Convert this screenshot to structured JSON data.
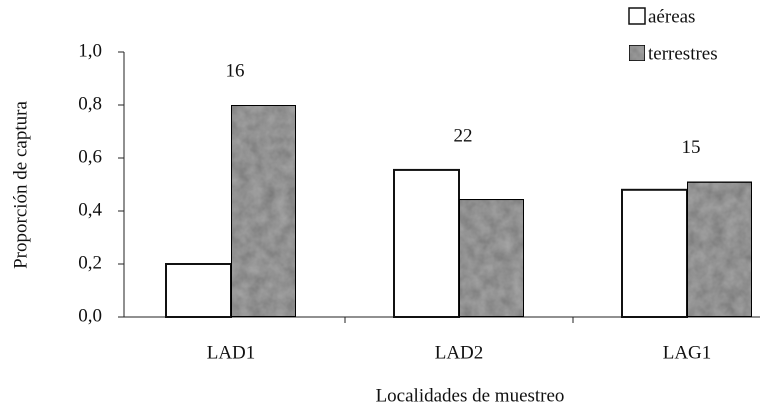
{
  "chart_data": {
    "type": "bar",
    "y_label": "Proporción de captura",
    "x_label": "Localidades de muestreo",
    "categories": [
      "LAD1",
      "LAD2",
      "LAG1"
    ],
    "series": [
      {
        "name": "aéreas",
        "color": "#ffffff",
        "values": [
          0.2,
          0.555,
          0.48
        ]
      },
      {
        "name": "terrestres",
        "color": "#a8a8a8",
        "values": [
          0.8,
          0.445,
          0.51
        ]
      }
    ],
    "annotations": [
      "16",
      "22",
      "15"
    ],
    "ylim": [
      0,
      1
    ],
    "yticks": [
      {
        "value": 0,
        "label": "0,0"
      },
      {
        "value": 0.2,
        "label": "0,2"
      },
      {
        "value": 0.4,
        "label": "0,4"
      },
      {
        "value": 0.6,
        "label": "0,6"
      },
      {
        "value": 0.8,
        "label": "0,8"
      },
      {
        "value": 1,
        "label": "1,0"
      }
    ],
    "legend": "upper right",
    "grid": false
  }
}
